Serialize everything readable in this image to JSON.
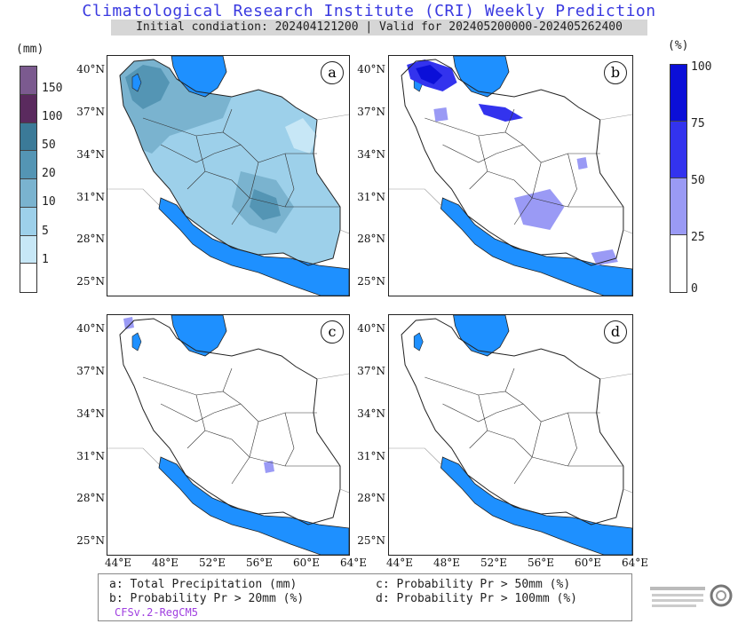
{
  "header": {
    "title": "Climatological Research Institute (CRI) Weekly Prediction",
    "subtitle": "Initial condiation: 202404121200 | Valid for 202405200000-202405262400"
  },
  "left_legend": {
    "unit": "(mm)",
    "ticks": [
      "150",
      "100",
      "50",
      "20",
      "10",
      "5",
      "1"
    ],
    "colors": [
      "#7b5a8f",
      "#5a2a5e",
      "#3b7a98",
      "#5495b4",
      "#7ab3cf",
      "#9dd0ea",
      "#c7e7f6",
      "#ffffff"
    ]
  },
  "right_legend": {
    "unit": "(%)",
    "ticks": [
      "100",
      "75",
      "50",
      "25",
      "0"
    ],
    "colors": [
      "#0b0fd8",
      "#3333ee",
      "#9a9af5",
      "#ffffff"
    ]
  },
  "panels": [
    {
      "label": "a"
    },
    {
      "label": "b"
    },
    {
      "label": "c"
    },
    {
      "label": "d"
    }
  ],
  "axes": {
    "lat_ticks": [
      "40°N",
      "37°N",
      "34°N",
      "31°N",
      "28°N",
      "25°N"
    ],
    "lon_ticks": [
      "44°E",
      "48°E",
      "52°E",
      "56°E",
      "60°E",
      "64°E"
    ]
  },
  "footer": {
    "a": "a: Total Precipitation (mm)",
    "b": "b: Probability Pr > 20mm (%)",
    "c": "c: Probability Pr > 50mm (%)",
    "d": "d: Probability Pr > 100mm (%)",
    "model": "CFSv.2-RegCM5"
  },
  "colors": {
    "sea": "#1e90ff",
    "title": "#3a3ae0",
    "model": "#a040e0"
  }
}
